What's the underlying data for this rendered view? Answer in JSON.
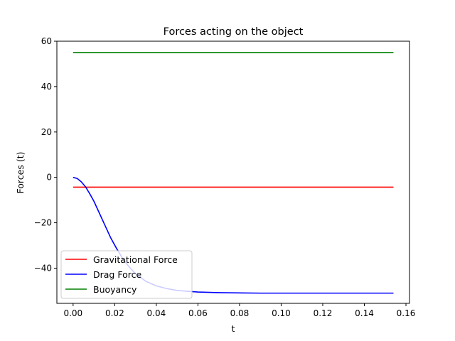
{
  "chart_data": {
    "type": "line",
    "title": "Forces acting on the object",
    "xlabel": "t",
    "ylabel": "Forces (t)",
    "xlim": [
      -0.0078,
      0.1617
    ],
    "ylim": [
      -55.5,
      60
    ],
    "xticks": [
      0.0,
      0.02,
      0.04,
      0.06,
      0.08,
      0.1,
      0.12,
      0.14,
      0.16
    ],
    "xtick_labels": [
      "0.00",
      "0.02",
      "0.04",
      "0.06",
      "0.08",
      "0.10",
      "0.12",
      "0.14",
      "0.16"
    ],
    "yticks": [
      -40,
      -20,
      0,
      20,
      40,
      60
    ],
    "ytick_labels": [
      "−40",
      "−20",
      "0",
      "20",
      "40",
      "60"
    ],
    "grid": false,
    "legend_position": "lower-left",
    "series": [
      {
        "name": "Gravitational Force",
        "color": "#ff0000",
        "x": [
          0.0,
          0.154
        ],
        "y": [
          -4.3,
          -4.3
        ]
      },
      {
        "name": "Drag Force",
        "color": "#0000ff",
        "x": [
          0.0,
          0.002,
          0.004,
          0.006,
          0.008,
          0.01,
          0.012,
          0.015,
          0.018,
          0.021,
          0.024,
          0.027,
          0.03,
          0.035,
          0.04,
          0.045,
          0.05,
          0.055,
          0.06,
          0.07,
          0.08,
          0.09,
          0.1,
          0.11,
          0.12,
          0.13,
          0.14,
          0.154
        ],
        "y": [
          0.0,
          -0.5,
          -2.0,
          -4.2,
          -7.2,
          -10.5,
          -14.5,
          -20.5,
          -26.5,
          -31.5,
          -36.0,
          -39.5,
          -42.4,
          -45.8,
          -47.8,
          -49.0,
          -49.8,
          -50.2,
          -50.5,
          -50.8,
          -50.9,
          -51.0,
          -51.0,
          -51.0,
          -51.0,
          -51.0,
          -51.0,
          -51.0
        ]
      },
      {
        "name": "Buoyancy",
        "color": "#008000",
        "x": [
          0.0,
          0.154
        ],
        "y": [
          55.0,
          55.0
        ]
      }
    ]
  }
}
